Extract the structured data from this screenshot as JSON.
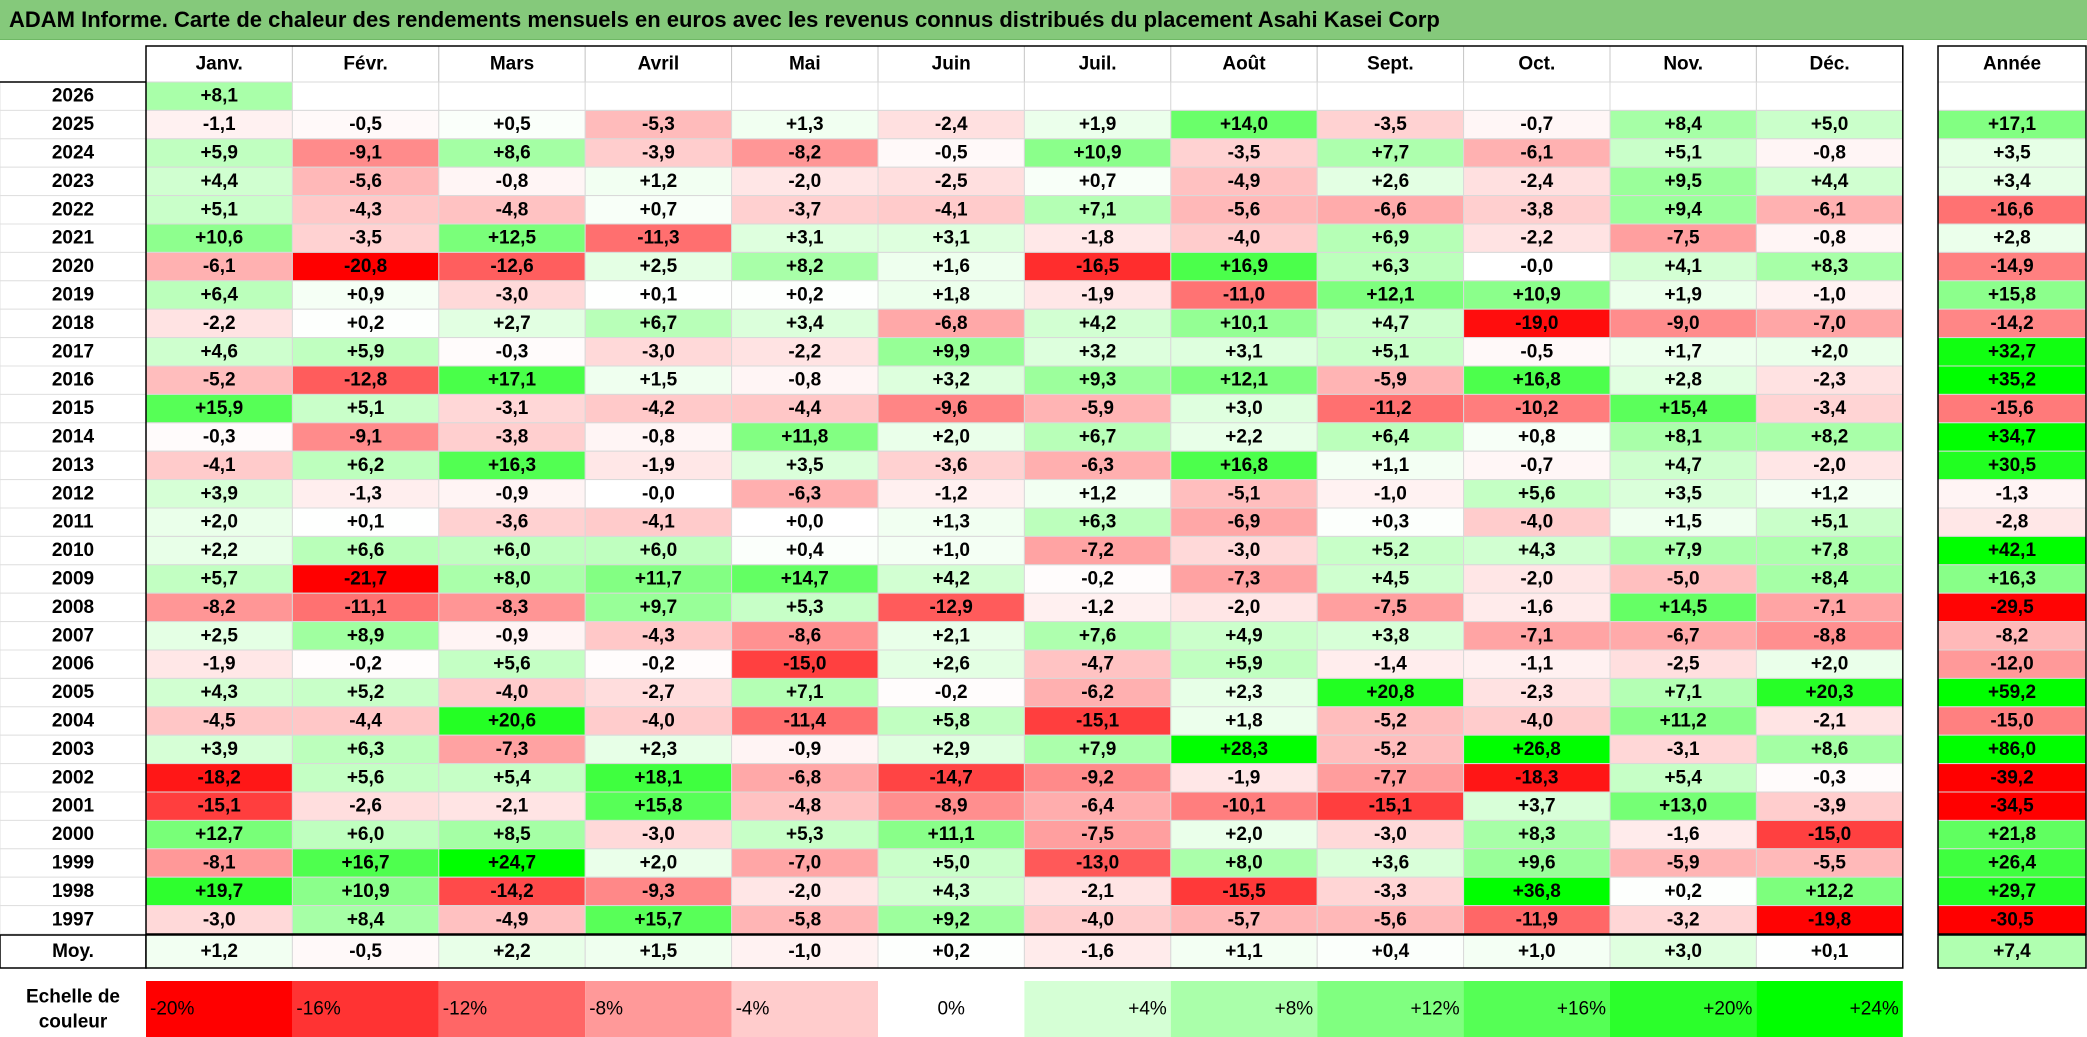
{
  "title": "ADAM Informe. Carte de chaleur des rendements mensuels en euros avec les revenus connus distribués du placement Asahi Kasei Corp",
  "months": [
    "Janv.",
    "Févr.",
    "Mars",
    "Avril",
    "Mai",
    "Juin",
    "Juil.",
    "Août",
    "Sept.",
    "Oct.",
    "Nov.",
    "Déc."
  ],
  "year_header": "Année",
  "avg_label": "Moy.",
  "scale_label": [
    "Echelle de",
    "couleur"
  ],
  "chart_data": {
    "type": "heatmap",
    "title": "ADAM Informe. Carte de chaleur des rendements mensuels en euros avec les revenus connus distribués du placement Asahi Kasei Corp",
    "rows": [
      {
        "year": "2026",
        "values": [
          "+8,1",
          null,
          null,
          null,
          null,
          null,
          null,
          null,
          null,
          null,
          null,
          null
        ],
        "annual": null
      },
      {
        "year": "2025",
        "values": [
          "-1,1",
          "-0,5",
          "+0,5",
          "-5,3",
          "+1,3",
          "-2,4",
          "+1,9",
          "+14,0",
          "-3,5",
          "-0,7",
          "+8,4",
          "+5,0"
        ],
        "annual": "+17,1"
      },
      {
        "year": "2024",
        "values": [
          "+5,9",
          "-9,1",
          "+8,6",
          "-3,9",
          "-8,2",
          "-0,5",
          "+10,9",
          "-3,5",
          "+7,7",
          "-6,1",
          "+5,1",
          "-0,8"
        ],
        "annual": "+3,5"
      },
      {
        "year": "2023",
        "values": [
          "+4,4",
          "-5,6",
          "-0,8",
          "+1,2",
          "-2,0",
          "-2,5",
          "+0,7",
          "-4,9",
          "+2,6",
          "-2,4",
          "+9,5",
          "+4,4"
        ],
        "annual": "+3,4"
      },
      {
        "year": "2022",
        "values": [
          "+5,1",
          "-4,3",
          "-4,8",
          "+0,7",
          "-3,7",
          "-4,1",
          "+7,1",
          "-5,6",
          "-6,6",
          "-3,8",
          "+9,4",
          "-6,1"
        ],
        "annual": "-16,6"
      },
      {
        "year": "2021",
        "values": [
          "+10,6",
          "-3,5",
          "+12,5",
          "-11,3",
          "+3,1",
          "+3,1",
          "-1,8",
          "-4,0",
          "+6,9",
          "-2,2",
          "-7,5",
          "-0,8"
        ],
        "annual": "+2,8"
      },
      {
        "year": "2020",
        "values": [
          "-6,1",
          "-20,8",
          "-12,6",
          "+2,5",
          "+8,2",
          "+1,6",
          "-16,5",
          "+16,9",
          "+6,3",
          "-0,0",
          "+4,1",
          "+8,3"
        ],
        "annual": "-14,9"
      },
      {
        "year": "2019",
        "values": [
          "+6,4",
          "+0,9",
          "-3,0",
          "+0,1",
          "+0,2",
          "+1,8",
          "-1,9",
          "-11,0",
          "+12,1",
          "+10,9",
          "+1,9",
          "-1,0"
        ],
        "annual": "+15,8"
      },
      {
        "year": "2018",
        "values": [
          "-2,2",
          "+0,2",
          "+2,7",
          "+6,7",
          "+3,4",
          "-6,8",
          "+4,2",
          "+10,1",
          "+4,7",
          "-19,0",
          "-9,0",
          "-7,0"
        ],
        "annual": "-14,2"
      },
      {
        "year": "2017",
        "values": [
          "+4,6",
          "+5,9",
          "-0,3",
          "-3,0",
          "-2,2",
          "+9,9",
          "+3,2",
          "+3,1",
          "+5,1",
          "-0,5",
          "+1,7",
          "+2,0"
        ],
        "annual": "+32,7"
      },
      {
        "year": "2016",
        "values": [
          "-5,2",
          "-12,8",
          "+17,1",
          "+1,5",
          "-0,8",
          "+3,2",
          "+9,3",
          "+12,1",
          "-5,9",
          "+16,8",
          "+2,8",
          "-2,3"
        ],
        "annual": "+35,2"
      },
      {
        "year": "2015",
        "values": [
          "+15,9",
          "+5,1",
          "-3,1",
          "-4,2",
          "-4,4",
          "-9,6",
          "-5,9",
          "+3,0",
          "-11,2",
          "-10,2",
          "+15,4",
          "-3,4"
        ],
        "annual": "-15,6"
      },
      {
        "year": "2014",
        "values": [
          "-0,3",
          "-9,1",
          "-3,8",
          "-0,8",
          "+11,8",
          "+2,0",
          "+6,7",
          "+2,2",
          "+6,4",
          "+0,8",
          "+8,1",
          "+8,2"
        ],
        "annual": "+34,7"
      },
      {
        "year": "2013",
        "values": [
          "-4,1",
          "+6,2",
          "+16,3",
          "-1,9",
          "+3,5",
          "-3,6",
          "-6,3",
          "+16,8",
          "+1,1",
          "-0,7",
          "+4,7",
          "-2,0"
        ],
        "annual": "+30,5"
      },
      {
        "year": "2012",
        "values": [
          "+3,9",
          "-1,3",
          "-0,9",
          "-0,0",
          "-6,3",
          "-1,2",
          "+1,2",
          "-5,1",
          "-1,0",
          "+5,6",
          "+3,5",
          "+1,2"
        ],
        "annual": "-1,3"
      },
      {
        "year": "2011",
        "values": [
          "+2,0",
          "+0,1",
          "-3,6",
          "-4,1",
          "+0,0",
          "+1,3",
          "+6,3",
          "-6,9",
          "+0,3",
          "-4,0",
          "+1,5",
          "+5,1"
        ],
        "annual": "-2,8"
      },
      {
        "year": "2010",
        "values": [
          "+2,2",
          "+6,6",
          "+6,0",
          "+6,0",
          "+0,4",
          "+1,0",
          "-7,2",
          "-3,0",
          "+5,2",
          "+4,3",
          "+7,9",
          "+7,8"
        ],
        "annual": "+42,1"
      },
      {
        "year": "2009",
        "values": [
          "+5,7",
          "-21,7",
          "+8,0",
          "+11,7",
          "+14,7",
          "+4,2",
          "-0,2",
          "-7,3",
          "+4,5",
          "-2,0",
          "-5,0",
          "+8,4"
        ],
        "annual": "+16,3"
      },
      {
        "year": "2008",
        "values": [
          "-8,2",
          "-11,1",
          "-8,3",
          "+9,7",
          "+5,3",
          "-12,9",
          "-1,2",
          "-2,0",
          "-7,5",
          "-1,6",
          "+14,5",
          "-7,1"
        ],
        "annual": "-29,5"
      },
      {
        "year": "2007",
        "values": [
          "+2,5",
          "+8,9",
          "-0,9",
          "-4,3",
          "-8,6",
          "+2,1",
          "+7,6",
          "+4,9",
          "+3,8",
          "-7,1",
          "-6,7",
          "-8,8"
        ],
        "annual": "-8,2"
      },
      {
        "year": "2006",
        "values": [
          "-1,9",
          "-0,2",
          "+5,6",
          "-0,2",
          "-15,0",
          "+2,6",
          "-4,7",
          "+5,9",
          "-1,4",
          "-1,1",
          "-2,5",
          "+2,0"
        ],
        "annual": "-12,0"
      },
      {
        "year": "2005",
        "values": [
          "+4,3",
          "+5,2",
          "-4,0",
          "-2,7",
          "+7,1",
          "-0,2",
          "-6,2",
          "+2,3",
          "+20,8",
          "-2,3",
          "+7,1",
          "+20,3"
        ],
        "annual": "+59,2"
      },
      {
        "year": "2004",
        "values": [
          "-4,5",
          "-4,4",
          "+20,6",
          "-4,0",
          "-11,4",
          "+5,8",
          "-15,1",
          "+1,8",
          "-5,2",
          "-4,0",
          "+11,2",
          "-2,1"
        ],
        "annual": "-15,0"
      },
      {
        "year": "2003",
        "values": [
          "+3,9",
          "+6,3",
          "-7,3",
          "+2,3",
          "-0,9",
          "+2,9",
          "+7,9",
          "+28,3",
          "-5,2",
          "+26,8",
          "-3,1",
          "+8,6"
        ],
        "annual": "+86,0"
      },
      {
        "year": "2002",
        "values": [
          "-18,2",
          "+5,6",
          "+5,4",
          "+18,1",
          "-6,8",
          "-14,7",
          "-9,2",
          "-1,9",
          "-7,7",
          "-18,3",
          "+5,4",
          "-0,3"
        ],
        "annual": "-39,2"
      },
      {
        "year": "2001",
        "values": [
          "-15,1",
          "-2,6",
          "-2,1",
          "+15,8",
          "-4,8",
          "-8,9",
          "-6,4",
          "-10,1",
          "-15,1",
          "+3,7",
          "+13,0",
          "-3,9"
        ],
        "annual": "-34,5"
      },
      {
        "year": "2000",
        "values": [
          "+12,7",
          "+6,0",
          "+8,5",
          "-3,0",
          "+5,3",
          "+11,1",
          "-7,5",
          "+2,0",
          "-3,0",
          "+8,3",
          "-1,6",
          "-15,0"
        ],
        "annual": "+21,8"
      },
      {
        "year": "1999",
        "values": [
          "-8,1",
          "+16,7",
          "+24,7",
          "+2,0",
          "-7,0",
          "+5,0",
          "-13,0",
          "+8,0",
          "+3,6",
          "+9,6",
          "-5,9",
          "-5,5"
        ],
        "annual": "+26,4"
      },
      {
        "year": "1998",
        "values": [
          "+19,7",
          "+10,9",
          "-14,2",
          "-9,3",
          "-2,0",
          "+4,3",
          "-2,1",
          "-15,5",
          "-3,3",
          "+36,8",
          "+0,2",
          "+12,2"
        ],
        "annual": "+29,7"
      },
      {
        "year": "1997",
        "values": [
          "-3,0",
          "+8,4",
          "-4,9",
          "+15,7",
          "-5,8",
          "+9,2",
          "-4,0",
          "-5,7",
          "-5,6",
          "-11,9",
          "-3,2",
          "-19,8"
        ],
        "annual": "-30,5"
      }
    ],
    "averages": [
      "+1,2",
      "-0,5",
      "+2,2",
      "+1,5",
      "-1,0",
      "+0,2",
      "-1,6",
      "+1,1",
      "+0,4",
      "+1,0",
      "+3,0",
      "+0,1"
    ],
    "annual_average": "+7,4",
    "color_scale": [
      "-20%",
      "-16%",
      "-12%",
      "-8%",
      "-4%",
      "0%",
      "+4%",
      "+8%",
      "+12%",
      "+16%",
      "+20%",
      "+24%"
    ],
    "colors": {
      "negative": "#ff0000",
      "neutral": "#ffffff",
      "positive": "#00ff00",
      "title_bar": "#85c97b"
    }
  }
}
